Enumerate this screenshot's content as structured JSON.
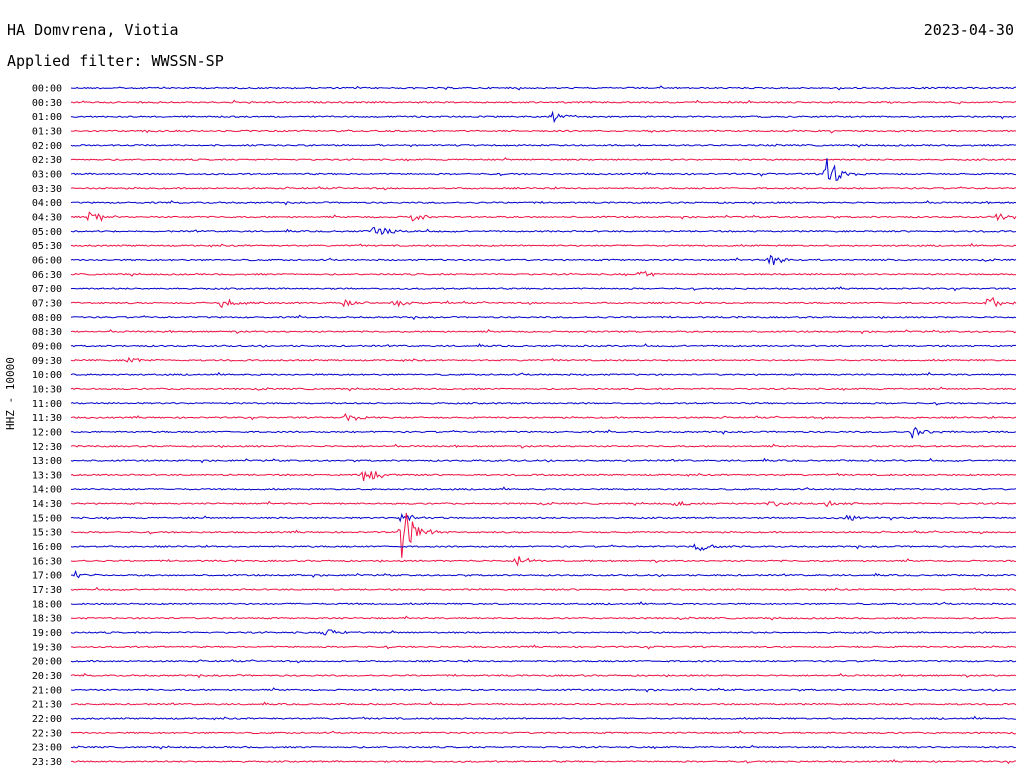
{
  "header": {
    "station": "HA Domvrena, Viotia",
    "date": "2023-04-30",
    "filter": "Applied filter: WWSSN-SP"
  },
  "chart_data": {
    "type": "line",
    "title": "HA Domvrena, Viotia",
    "subtitle": "Applied filter: WWSSN-SP",
    "date": "2023-04-30",
    "ylabel": "HHZ - 10000",
    "trace_colors": [
      "#0000cc",
      "#ee1144"
    ],
    "rows": [
      {
        "label": "00:00",
        "color": "#0000cc",
        "events": []
      },
      {
        "label": "00:30",
        "color": "#ee1144",
        "events": []
      },
      {
        "label": "01:00",
        "color": "#0000cc",
        "events": [
          {
            "t": 0.51,
            "amp": 6
          }
        ]
      },
      {
        "label": "01:30",
        "color": "#ee1144",
        "events": []
      },
      {
        "label": "02:00",
        "color": "#0000cc",
        "events": []
      },
      {
        "label": "02:30",
        "color": "#ee1144",
        "events": []
      },
      {
        "label": "03:00",
        "color": "#0000cc",
        "events": [
          {
            "t": 0.8,
            "amp": 16
          }
        ]
      },
      {
        "label": "03:30",
        "color": "#ee1144",
        "events": []
      },
      {
        "label": "04:00",
        "color": "#0000cc",
        "events": []
      },
      {
        "label": "04:30",
        "color": "#ee1144",
        "events": [
          {
            "t": 0.02,
            "amp": 6
          },
          {
            "t": 0.36,
            "amp": 5
          },
          {
            "t": 0.98,
            "amp": 4
          }
        ]
      },
      {
        "label": "05:00",
        "color": "#0000cc",
        "events": [
          {
            "t": 0.32,
            "amp": 7
          }
        ]
      },
      {
        "label": "05:30",
        "color": "#ee1144",
        "events": []
      },
      {
        "label": "06:00",
        "color": "#0000cc",
        "events": [
          {
            "t": 0.74,
            "amp": 6
          }
        ]
      },
      {
        "label": "06:30",
        "color": "#ee1144",
        "events": [
          {
            "t": 0.6,
            "amp": 5
          }
        ]
      },
      {
        "label": "07:00",
        "color": "#0000cc",
        "events": []
      },
      {
        "label": "07:30",
        "color": "#ee1144",
        "events": [
          {
            "t": 0.16,
            "amp": 6
          },
          {
            "t": 0.29,
            "amp": 5
          },
          {
            "t": 0.34,
            "amp": 5
          },
          {
            "t": 0.97,
            "amp": 8
          }
        ]
      },
      {
        "label": "08:00",
        "color": "#0000cc",
        "events": []
      },
      {
        "label": "08:30",
        "color": "#ee1144",
        "events": []
      },
      {
        "label": "09:00",
        "color": "#0000cc",
        "events": []
      },
      {
        "label": "09:30",
        "color": "#ee1144",
        "events": [
          {
            "t": 0.06,
            "amp": 3
          }
        ]
      },
      {
        "label": "10:00",
        "color": "#0000cc",
        "events": []
      },
      {
        "label": "10:30",
        "color": "#ee1144",
        "events": []
      },
      {
        "label": "11:00",
        "color": "#0000cc",
        "events": []
      },
      {
        "label": "11:30",
        "color": "#ee1144",
        "events": [
          {
            "t": 0.29,
            "amp": 6
          }
        ]
      },
      {
        "label": "12:00",
        "color": "#0000cc",
        "events": [
          {
            "t": 0.89,
            "amp": 7
          }
        ]
      },
      {
        "label": "12:30",
        "color": "#ee1144",
        "events": []
      },
      {
        "label": "13:00",
        "color": "#0000cc",
        "events": []
      },
      {
        "label": "13:30",
        "color": "#ee1144",
        "events": [
          {
            "t": 0.31,
            "amp": 12
          }
        ]
      },
      {
        "label": "14:00",
        "color": "#0000cc",
        "events": []
      },
      {
        "label": "14:30",
        "color": "#ee1144",
        "events": [
          {
            "t": 0.64,
            "amp": 4
          },
          {
            "t": 0.74,
            "amp": 5
          },
          {
            "t": 0.8,
            "amp": 4
          }
        ]
      },
      {
        "label": "15:00",
        "color": "#0000cc",
        "events": [
          {
            "t": 0.35,
            "amp": 5
          },
          {
            "t": 0.82,
            "amp": 5
          }
        ]
      },
      {
        "label": "15:30",
        "color": "#ee1144",
        "events": [
          {
            "t": 0.35,
            "amp": 28
          }
        ]
      },
      {
        "label": "16:00",
        "color": "#0000cc",
        "events": [
          {
            "t": 0.66,
            "amp": 7
          }
        ]
      },
      {
        "label": "16:30",
        "color": "#ee1144",
        "events": [
          {
            "t": 0.47,
            "amp": 7
          }
        ]
      },
      {
        "label": "17:00",
        "color": "#0000cc",
        "events": [
          {
            "t": 0.0,
            "amp": 7
          }
        ]
      },
      {
        "label": "17:30",
        "color": "#ee1144",
        "events": []
      },
      {
        "label": "18:00",
        "color": "#0000cc",
        "events": []
      },
      {
        "label": "18:30",
        "color": "#ee1144",
        "events": []
      },
      {
        "label": "19:00",
        "color": "#0000cc",
        "events": [
          {
            "t": 0.27,
            "amp": 4
          }
        ]
      },
      {
        "label": "19:30",
        "color": "#ee1144",
        "events": []
      },
      {
        "label": "20:00",
        "color": "#0000cc",
        "events": []
      },
      {
        "label": "20:30",
        "color": "#ee1144",
        "events": []
      },
      {
        "label": "21:00",
        "color": "#0000cc",
        "events": []
      },
      {
        "label": "21:30",
        "color": "#ee1144",
        "events": []
      },
      {
        "label": "22:00",
        "color": "#0000cc",
        "events": []
      },
      {
        "label": "22:30",
        "color": "#ee1144",
        "events": []
      },
      {
        "label": "23:00",
        "color": "#0000cc",
        "events": []
      },
      {
        "label": "23:30",
        "color": "#ee1144",
        "events": []
      }
    ]
  }
}
